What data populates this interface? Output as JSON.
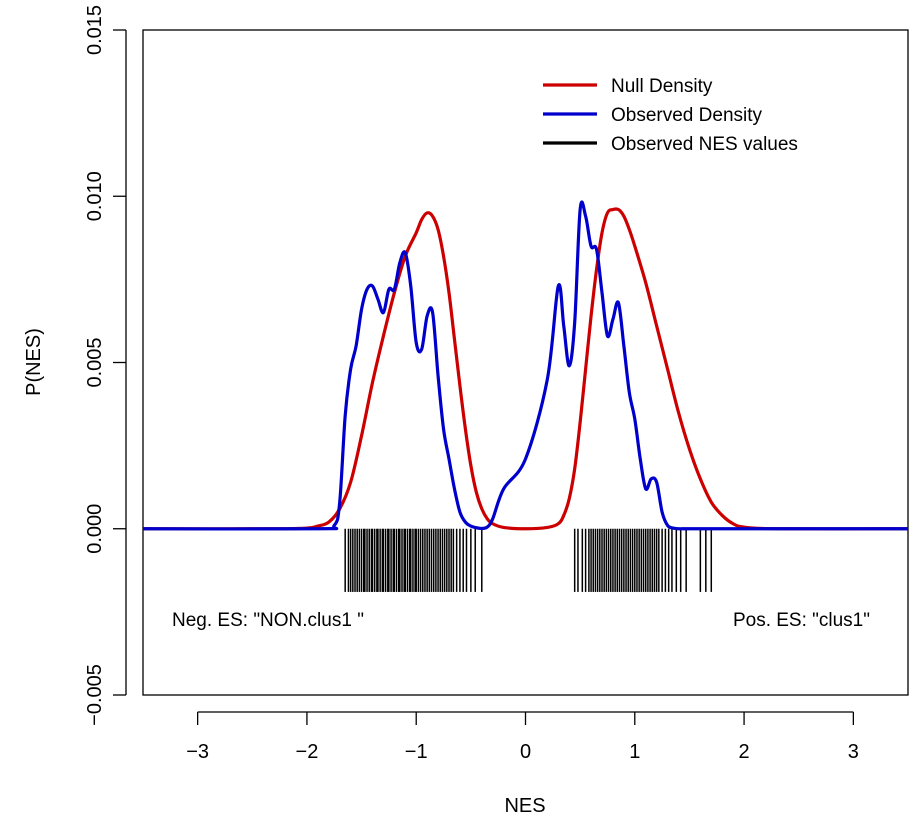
{
  "chart_data": {
    "type": "line",
    "xlabel": "NES",
    "ylabel": "P(NES)",
    "xlim": [
      -3.5,
      3.5
    ],
    "ylim": [
      -0.005,
      0.015
    ],
    "xticks": [
      "−3",
      "−2",
      "−1",
      "0",
      "1",
      "2",
      "3"
    ],
    "xtick_values": [
      -3,
      -2,
      -1,
      0,
      1,
      2,
      3
    ],
    "yticks": [
      "−0.005",
      "0.000",
      "0.005",
      "0.010",
      "0.015"
    ],
    "ytick_values": [
      -0.005,
      0,
      0.005,
      0.01,
      0.015
    ],
    "grid": false,
    "legend_position": "top-right",
    "legend": [
      {
        "label": "Null Density",
        "color": "#cc0000"
      },
      {
        "label": "Observed Density",
        "color": "#0000cc"
      },
      {
        "label": "Observed NES values",
        "color": "#000000"
      }
    ],
    "annotations": {
      "neg": "Neg. ES: \"NON.clus1 \"",
      "pos": "Pos. ES: \"clus1\""
    },
    "series": [
      {
        "name": "Null Density",
        "color": "#cc0000",
        "x": [
          -3.5,
          -2.3,
          -2.0,
          -1.9,
          -1.8,
          -1.7,
          -1.6,
          -1.5,
          -1.4,
          -1.3,
          -1.2,
          -1.1,
          -1.0,
          -0.95,
          -0.9,
          -0.85,
          -0.8,
          -0.75,
          -0.7,
          -0.65,
          -0.6,
          -0.55,
          -0.5,
          -0.45,
          -0.4,
          -0.35,
          -0.3,
          -0.2,
          0.0,
          0.2,
          0.3,
          0.35,
          0.4,
          0.45,
          0.5,
          0.55,
          0.6,
          0.65,
          0.7,
          0.75,
          0.8,
          0.85,
          0.9,
          0.95,
          1.0,
          1.1,
          1.2,
          1.3,
          1.4,
          1.5,
          1.6,
          1.7,
          1.8,
          1.9,
          2.0,
          2.3,
          3.5
        ],
        "y": [
          0.0,
          0.0,
          2e-05,
          8e-05,
          0.0002,
          0.0006,
          0.0014,
          0.0028,
          0.0044,
          0.0058,
          0.0071,
          0.0082,
          0.0089,
          0.0093,
          0.0095,
          0.0094,
          0.009,
          0.0082,
          0.0071,
          0.0057,
          0.0043,
          0.003,
          0.0019,
          0.0011,
          0.0006,
          0.0003,
          0.00015,
          4e-05,
          0.0,
          4e-05,
          0.00015,
          0.0004,
          0.0009,
          0.0018,
          0.0032,
          0.0048,
          0.0064,
          0.0078,
          0.0089,
          0.0095,
          0.0096,
          0.0096,
          0.0094,
          0.009,
          0.0085,
          0.0074,
          0.0061,
          0.0048,
          0.0035,
          0.0024,
          0.0015,
          0.0008,
          0.0004,
          0.00015,
          5e-05,
          0.0,
          0.0
        ]
      },
      {
        "name": "Observed Density",
        "color": "#0000cc",
        "x": [
          -3.5,
          -1.9,
          -1.75,
          -1.7,
          -1.65,
          -1.6,
          -1.55,
          -1.5,
          -1.45,
          -1.4,
          -1.35,
          -1.3,
          -1.25,
          -1.2,
          -1.15,
          -1.1,
          -1.05,
          -1.0,
          -0.95,
          -0.9,
          -0.85,
          -0.8,
          -0.75,
          -0.7,
          -0.65,
          -0.6,
          -0.55,
          -0.5,
          -0.45,
          -0.4,
          -0.35,
          -0.3,
          -0.2,
          0.0,
          0.2,
          0.3,
          0.35,
          0.4,
          0.45,
          0.5,
          0.55,
          0.6,
          0.65,
          0.7,
          0.75,
          0.8,
          0.85,
          0.9,
          0.95,
          1.0,
          1.05,
          1.1,
          1.15,
          1.2,
          1.25,
          1.3,
          1.35,
          1.4,
          1.45,
          1.5,
          1.55,
          1.6,
          1.65,
          1.7,
          1.75,
          1.8,
          1.9,
          3.5
        ],
        "y": [
          0.0,
          0.0,
          0.0001,
          0.0008,
          0.0034,
          0.0048,
          0.0055,
          0.0066,
          0.0072,
          0.0073,
          0.0069,
          0.0065,
          0.0072,
          0.0072,
          0.008,
          0.0083,
          0.0073,
          0.0056,
          0.0054,
          0.0064,
          0.0065,
          0.0046,
          0.003,
          0.0021,
          0.0012,
          0.0005,
          0.0002,
          8e-05,
          3e-05,
          1e-05,
          5e-05,
          0.0003,
          0.0012,
          0.0021,
          0.0045,
          0.0073,
          0.0061,
          0.0049,
          0.0062,
          0.0096,
          0.0094,
          0.0085,
          0.0084,
          0.0071,
          0.0058,
          0.0063,
          0.0068,
          0.0055,
          0.0041,
          0.0033,
          0.0021,
          0.0012,
          0.0015,
          0.0014,
          0.0005,
          0.0001,
          2e-05,
          0.0,
          0.0,
          0.0,
          0.0,
          0.0,
          0.0,
          0.0,
          0.0,
          0.0,
          0.0,
          0.0
        ]
      }
    ],
    "rug_values": [
      -1.65,
      -1.62,
      -1.6,
      -1.58,
      -1.56,
      -1.54,
      -1.52,
      -1.5,
      -1.48,
      -1.47,
      -1.45,
      -1.43,
      -1.41,
      -1.4,
      -1.38,
      -1.36,
      -1.35,
      -1.33,
      -1.31,
      -1.3,
      -1.28,
      -1.26,
      -1.25,
      -1.23,
      -1.21,
      -1.2,
      -1.18,
      -1.16,
      -1.15,
      -1.13,
      -1.11,
      -1.1,
      -1.08,
      -1.06,
      -1.05,
      -1.03,
      -1.01,
      -1.0,
      -0.98,
      -0.96,
      -0.94,
      -0.92,
      -0.9,
      -0.88,
      -0.86,
      -0.84,
      -0.82,
      -0.8,
      -0.78,
      -0.76,
      -0.74,
      -0.72,
      -0.7,
      -0.68,
      -0.66,
      -0.63,
      -0.6,
      -0.57,
      -0.54,
      -0.5,
      -0.46,
      -0.4,
      0.45,
      0.48,
      0.52,
      0.55,
      0.58,
      0.6,
      0.62,
      0.64,
      0.66,
      0.68,
      0.7,
      0.72,
      0.74,
      0.76,
      0.78,
      0.8,
      0.82,
      0.84,
      0.86,
      0.88,
      0.9,
      0.92,
      0.94,
      0.96,
      0.98,
      1.0,
      1.02,
      1.04,
      1.06,
      1.08,
      1.1,
      1.12,
      1.14,
      1.16,
      1.18,
      1.2,
      1.22,
      1.25,
      1.28,
      1.31,
      1.34,
      1.38,
      1.42,
      1.47,
      1.6,
      1.65,
      1.7
    ]
  }
}
